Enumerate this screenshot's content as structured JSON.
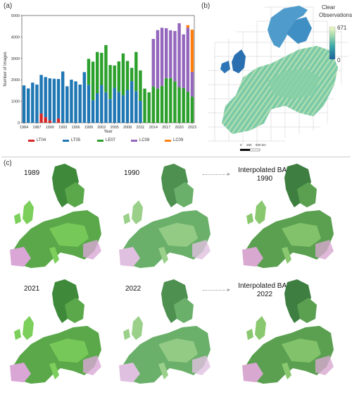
{
  "panels": {
    "a": "(a)",
    "b": "(b)",
    "c": "(c)"
  },
  "colors": {
    "LT04": "#d62728",
    "LT05": "#1f77b4",
    "LE07": "#2ca02c",
    "LC08": "#9467bd",
    "LC09": "#ff7f0e"
  },
  "chart_data": {
    "type": "bar",
    "stacked": true,
    "xlabel": "Year",
    "ylabel": "Number of Images",
    "ylim": [
      0,
      5000
    ],
    "yticks": [
      "0",
      "1000",
      "2000",
      "3000",
      "4000",
      "5000"
    ],
    "xtick_labels": [
      "1984",
      "1987",
      "1990",
      "1993",
      "1996",
      "1999",
      "2002",
      "2005",
      "2008",
      "2011",
      "2014",
      "2017",
      "2020",
      "2023"
    ],
    "categories": [
      "1984",
      "1985",
      "1986",
      "1987",
      "1988",
      "1989",
      "1990",
      "1991",
      "1992",
      "1993",
      "1994",
      "1995",
      "1996",
      "1997",
      "1998",
      "1999",
      "2000",
      "2001",
      "2002",
      "2003",
      "2004",
      "2005",
      "2006",
      "2007",
      "2008",
      "2009",
      "2010",
      "2011",
      "2012",
      "2013",
      "2014",
      "2015",
      "2016",
      "2017",
      "2018",
      "2019",
      "2020",
      "2021",
      "2022",
      "2023"
    ],
    "series": [
      {
        "name": "LT04",
        "values": [
          0,
          0,
          0,
          0,
          430,
          260,
          110,
          0,
          200,
          0,
          0,
          0,
          0,
          0,
          0,
          0,
          0,
          0,
          0,
          0,
          0,
          0,
          0,
          0,
          0,
          0,
          0,
          0,
          0,
          0,
          0,
          0,
          0,
          0,
          0,
          0,
          0,
          0,
          0,
          0
        ]
      },
      {
        "name": "LT05",
        "values": [
          1740,
          1600,
          1870,
          1780,
          1800,
          1870,
          1960,
          2050,
          1840,
          2390,
          1700,
          2010,
          1930,
          1780,
          2360,
          1770,
          1050,
          1380,
          1760,
          1420,
          1110,
          1630,
          1440,
          1280,
          1530,
          1940,
          1470,
          1020,
          0,
          0,
          0,
          0,
          0,
          0,
          0,
          0,
          0,
          0,
          0,
          0
        ]
      },
      {
        "name": "LE07",
        "values": [
          0,
          0,
          0,
          0,
          0,
          0,
          0,
          0,
          0,
          0,
          0,
          0,
          0,
          0,
          0,
          1210,
          1800,
          1920,
          1500,
          2200,
          1580,
          1040,
          1420,
          1950,
          1350,
          620,
          1830,
          1420,
          1590,
          1420,
          1690,
          1590,
          1720,
          2080,
          2080,
          1930,
          1660,
          1620,
          1450,
          1220
        ]
      },
      {
        "name": "LC08",
        "values": [
          0,
          0,
          0,
          0,
          0,
          0,
          0,
          0,
          0,
          0,
          0,
          0,
          0,
          0,
          0,
          0,
          0,
          0,
          0,
          0,
          0,
          0,
          0,
          0,
          0,
          0,
          0,
          0,
          0,
          0,
          2220,
          2730,
          2710,
          2330,
          2230,
          2350,
          2980,
          2500,
          2980,
          1150
        ]
      },
      {
        "name": "LC09",
        "values": [
          0,
          0,
          0,
          0,
          0,
          0,
          0,
          0,
          0,
          0,
          0,
          0,
          0,
          0,
          0,
          0,
          0,
          0,
          0,
          0,
          0,
          0,
          0,
          0,
          0,
          0,
          0,
          0,
          0,
          0,
          0,
          0,
          0,
          0,
          0,
          0,
          0,
          0,
          120,
          1970
        ]
      }
    ]
  },
  "map_b": {
    "legend_title_line1": "Clear",
    "legend_title_line2": "Observations",
    "cb_max": "671",
    "cb_min": "0",
    "scale_labels": [
      "0",
      "250",
      "500 km"
    ]
  },
  "panel_c": {
    "row1": {
      "y1": "1989",
      "y2": "1990",
      "interp_line1": "Interpolated BAP",
      "interp_line2": "1990"
    },
    "row2": {
      "y1": "2021",
      "y2": "2022",
      "interp_line1": "Interpolated BAP",
      "interp_line2": "2022"
    }
  }
}
